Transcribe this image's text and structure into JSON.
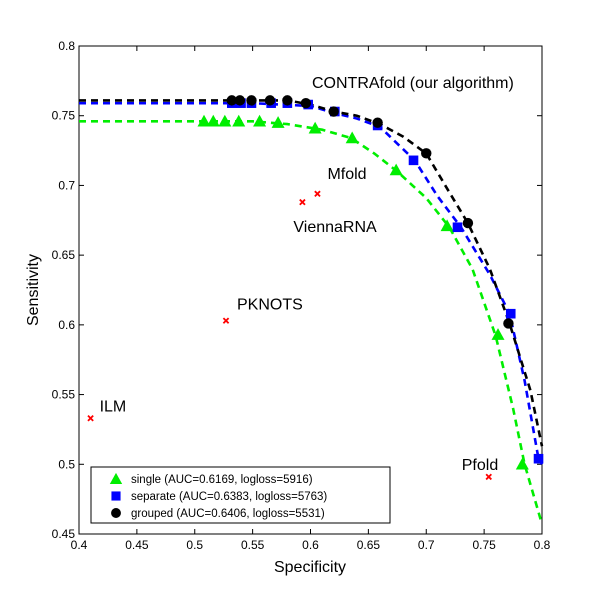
{
  "chart_data": {
    "type": "scatter",
    "xlabel": "Specificity",
    "ylabel": "Sensitivity",
    "xlim": [
      0.4,
      0.8
    ],
    "ylim": [
      0.45,
      0.8
    ],
    "xticks": [
      "0.4",
      "0.45",
      "0.5",
      "0.55",
      "0.6",
      "0.65",
      "0.7",
      "0.75",
      "0.8"
    ],
    "yticks": [
      "0.45",
      "0.5",
      "0.55",
      "0.6",
      "0.65",
      "0.7",
      "0.75",
      "0.8"
    ],
    "grid": false,
    "legend_position": "bottom-left",
    "curve_annotation": "CONTRAfold (our algorithm)",
    "series": [
      {
        "name": "single (AUC=0.6169, logloss=5916)",
        "color": "#00ee00",
        "marker": "triangle",
        "curve": [
          [
            0.4,
            0.746
          ],
          [
            0.45,
            0.746
          ],
          [
            0.5,
            0.746
          ],
          [
            0.55,
            0.746
          ],
          [
            0.58,
            0.744
          ],
          [
            0.61,
            0.74
          ],
          [
            0.635,
            0.734
          ],
          [
            0.655,
            0.723
          ],
          [
            0.675,
            0.71
          ],
          [
            0.7,
            0.691
          ],
          [
            0.72,
            0.67
          ],
          [
            0.74,
            0.64
          ],
          [
            0.76,
            0.592
          ],
          [
            0.775,
            0.54
          ],
          [
            0.785,
            0.5
          ],
          [
            0.8,
            0.457
          ]
        ],
        "points": [
          [
            0.508,
            0.746
          ],
          [
            0.516,
            0.746
          ],
          [
            0.526,
            0.746
          ],
          [
            0.538,
            0.746
          ],
          [
            0.556,
            0.746
          ],
          [
            0.572,
            0.745
          ],
          [
            0.604,
            0.741
          ],
          [
            0.636,
            0.734
          ],
          [
            0.674,
            0.711
          ],
          [
            0.718,
            0.671
          ],
          [
            0.762,
            0.593
          ],
          [
            0.783,
            0.5
          ]
        ]
      },
      {
        "name": "separate (AUC=0.6383, logloss=5763)",
        "color": "#0000ff",
        "marker": "square",
        "curve": [
          [
            0.4,
            0.759
          ],
          [
            0.5,
            0.759
          ],
          [
            0.55,
            0.759
          ],
          [
            0.6,
            0.757
          ],
          [
            0.62,
            0.752
          ],
          [
            0.64,
            0.748
          ],
          [
            0.66,
            0.742
          ],
          [
            0.69,
            0.718
          ],
          [
            0.71,
            0.692
          ],
          [
            0.73,
            0.67
          ],
          [
            0.755,
            0.636
          ],
          [
            0.772,
            0.608
          ],
          [
            0.785,
            0.56
          ],
          [
            0.797,
            0.504
          ],
          [
            0.8,
            0.5
          ]
        ],
        "points": [
          [
            0.532,
            0.759
          ],
          [
            0.54,
            0.759
          ],
          [
            0.549,
            0.759
          ],
          [
            0.566,
            0.759
          ],
          [
            0.58,
            0.759
          ],
          [
            0.598,
            0.758
          ],
          [
            0.621,
            0.753
          ],
          [
            0.658,
            0.743
          ],
          [
            0.689,
            0.718
          ],
          [
            0.727,
            0.67
          ],
          [
            0.773,
            0.608
          ],
          [
            0.797,
            0.504
          ]
        ]
      },
      {
        "name": "grouped (AUC=0.6406, logloss=5531)",
        "color": "#000000",
        "marker": "circle",
        "curve": [
          [
            0.4,
            0.761
          ],
          [
            0.5,
            0.761
          ],
          [
            0.55,
            0.761
          ],
          [
            0.58,
            0.761
          ],
          [
            0.6,
            0.758
          ],
          [
            0.62,
            0.753
          ],
          [
            0.64,
            0.75
          ],
          [
            0.66,
            0.744
          ],
          [
            0.68,
            0.735
          ],
          [
            0.7,
            0.723
          ],
          [
            0.72,
            0.695
          ],
          [
            0.736,
            0.673
          ],
          [
            0.755,
            0.64
          ],
          [
            0.772,
            0.601
          ],
          [
            0.79,
            0.553
          ],
          [
            0.8,
            0.513
          ]
        ],
        "points": [
          [
            0.532,
            0.761
          ],
          [
            0.539,
            0.761
          ],
          [
            0.549,
            0.761
          ],
          [
            0.565,
            0.761
          ],
          [
            0.58,
            0.761
          ],
          [
            0.596,
            0.759
          ],
          [
            0.62,
            0.753
          ],
          [
            0.658,
            0.745
          ],
          [
            0.7,
            0.723
          ],
          [
            0.736,
            0.673
          ],
          [
            0.771,
            0.601
          ]
        ]
      }
    ],
    "others": {
      "color": "#ff0000",
      "marker": "x",
      "points": [
        {
          "label": "Mfold",
          "x": 0.606,
          "y": 0.694
        },
        {
          "label": "ViennaRNA",
          "x": 0.593,
          "y": 0.688
        },
        {
          "label": "PKNOTS",
          "x": 0.527,
          "y": 0.603
        },
        {
          "label": "ILM",
          "x": 0.41,
          "y": 0.533
        },
        {
          "label": "Pfold",
          "x": 0.754,
          "y": 0.491
        }
      ]
    }
  }
}
